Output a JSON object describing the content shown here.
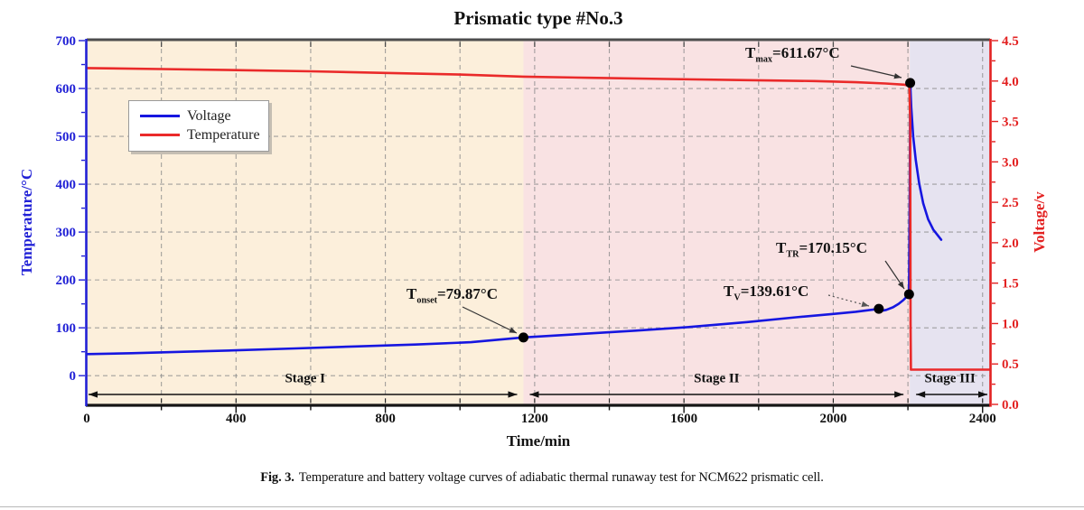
{
  "figure": {
    "caption_bold": "Fig. 3.",
    "caption_text": "Temperature and battery voltage curves of adiabatic thermal runaway test for NCM622 prismatic cell."
  },
  "chart_data": {
    "type": "line",
    "title": "Prismatic type #No.3",
    "xlabel": "Time/min",
    "ylabel_left": "Temperature/°C",
    "ylabel_right": "Voltage/v",
    "xlim": [
      0,
      2420
    ],
    "ylim_left": [
      -60,
      700
    ],
    "ylim_right": [
      0,
      4.5
    ],
    "x_major_ticks": [
      0,
      400,
      800,
      1200,
      1600,
      2000,
      2400
    ],
    "x_minor_step": 200,
    "y_left_major_ticks": [
      0,
      100,
      200,
      300,
      400,
      500,
      600,
      700
    ],
    "y_left_minor_step": 50,
    "y_right_major_ticks": [
      "0.0",
      "0.5",
      "1.0",
      "1.5",
      "2.0",
      "2.5",
      "3.0",
      "3.5",
      "4.0",
      "4.5"
    ],
    "y_right_minor_step": 0.25,
    "grid": "dashed gray, vertical every 200 min, horizontal every 100 °C",
    "legend_position": "upper-left",
    "colors": {
      "left_axis": "#2121d6",
      "right_axis": "#e32222",
      "grid": "#8c8c8c",
      "marker": "#000000"
    },
    "legend": [
      {
        "label": "Voltage",
        "color": "#1616e0"
      },
      {
        "label": "Temperature",
        "color": "#ea2a2a"
      }
    ],
    "stages": [
      {
        "label": "Stage I",
        "range": [
          0,
          1170
        ],
        "color": "#fcefdb"
      },
      {
        "label": "Stage II",
        "range": [
          1170,
          2205
        ],
        "color": "#f9e2e3"
      },
      {
        "label": "Stage III",
        "range": [
          2205,
          2420
        ],
        "color": "#e6e3f0"
      }
    ],
    "series": [
      {
        "name": "Voltage",
        "color": "#1616e0",
        "axis": "left",
        "points": [
          [
            0,
            45
          ],
          [
            120,
            47
          ],
          [
            260,
            50
          ],
          [
            400,
            53
          ],
          [
            560,
            57
          ],
          [
            720,
            61
          ],
          [
            880,
            65
          ],
          [
            1030,
            70
          ],
          [
            1170,
            79.87
          ],
          [
            1320,
            87
          ],
          [
            1470,
            94
          ],
          [
            1620,
            102
          ],
          [
            1770,
            112
          ],
          [
            1900,
            122
          ],
          [
            2000,
            129
          ],
          [
            2060,
            133.5
          ],
          [
            2122,
            139.61
          ],
          [
            2130,
            135.5
          ],
          [
            2142,
            137.5
          ],
          [
            2160,
            143
          ],
          [
            2175,
            150
          ],
          [
            2188,
            158
          ],
          [
            2203,
            170.15
          ],
          [
            2205,
            400
          ],
          [
            2206,
            611.67
          ],
          [
            2209,
            560
          ],
          [
            2214,
            500
          ],
          [
            2221,
            450
          ],
          [
            2230,
            402
          ],
          [
            2241,
            360
          ],
          [
            2254,
            327
          ],
          [
            2268,
            305
          ],
          [
            2289,
            284
          ]
        ]
      },
      {
        "name": "Temperature",
        "color": "#ea2a2a",
        "axis": "right",
        "points": [
          [
            0,
            4.16
          ],
          [
            200,
            4.148
          ],
          [
            400,
            4.135
          ],
          [
            600,
            4.12
          ],
          [
            800,
            4.1
          ],
          [
            1000,
            4.08
          ],
          [
            1170,
            4.055
          ],
          [
            1350,
            4.04
          ],
          [
            1550,
            4.025
          ],
          [
            1750,
            4.012
          ],
          [
            1950,
            4.0
          ],
          [
            2060,
            3.985
          ],
          [
            2140,
            3.97
          ],
          [
            2190,
            3.955
          ],
          [
            2204,
            3.94
          ],
          [
            2206,
            3.5
          ],
          [
            2207,
            1.0
          ],
          [
            2208,
            0.43
          ],
          [
            2300,
            0.43
          ],
          [
            2420,
            0.43
          ]
        ]
      }
    ],
    "annotations": [
      {
        "id": "tonset",
        "prefix": "T",
        "sub": "onset",
        "value": "=79.87°C",
        "point": [
          1170,
          79.87
        ],
        "axis": "left",
        "arrow_style": "solid"
      },
      {
        "id": "tv",
        "prefix": "T",
        "sub": "V",
        "value": "=139.61°C",
        "point": [
          2122,
          139.61
        ],
        "axis": "left",
        "arrow_style": "dotted"
      },
      {
        "id": "ttr",
        "prefix": "T",
        "sub": "TR",
        "value": "=170.15°C",
        "point": [
          2203,
          170.15
        ],
        "axis": "left",
        "arrow_style": "solid"
      },
      {
        "id": "tmax",
        "prefix": "T",
        "sub": "max",
        "value": "=611.67°C",
        "point": [
          2206,
          611.67
        ],
        "axis": "left",
        "arrow_style": "solid"
      }
    ]
  }
}
